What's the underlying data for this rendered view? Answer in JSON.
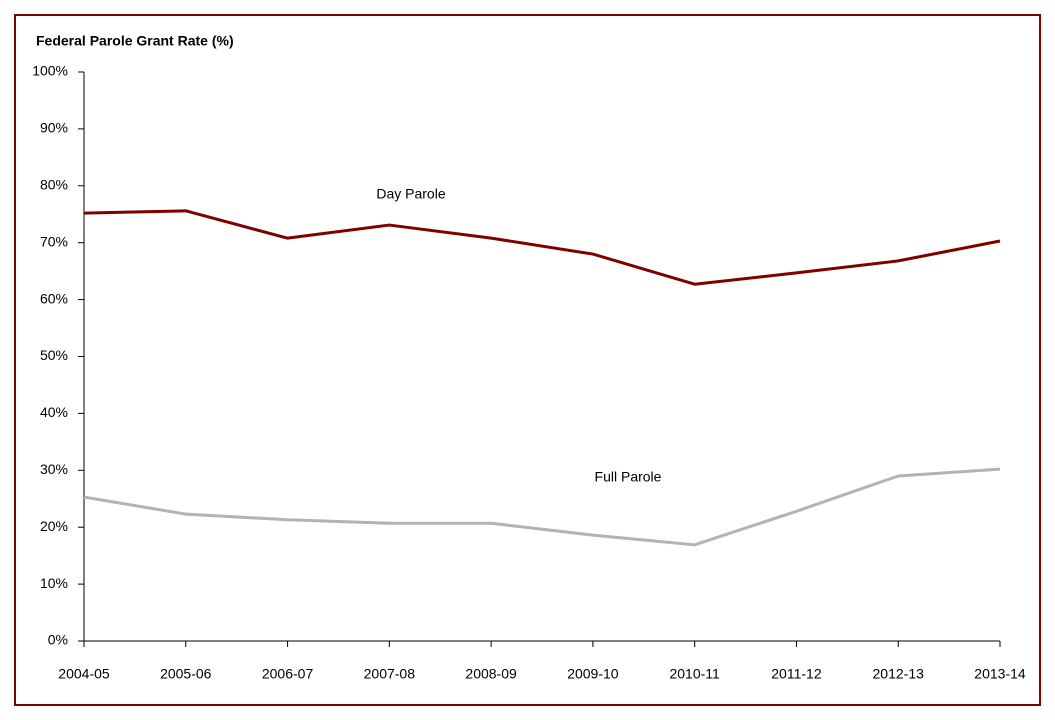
{
  "chart_data": {
    "type": "line",
    "title": "Federal Parole Grant Rate (%)",
    "categories": [
      "2004-05",
      "2005-06",
      "2006-07",
      "2007-08",
      "2008-09",
      "2009-10",
      "2010-11",
      "2011-12",
      "2012-13",
      "2013-14"
    ],
    "series": [
      {
        "name": "Day Parole",
        "color": "#800000",
        "values": [
          75.2,
          75.6,
          70.8,
          73.1,
          70.8,
          68.0,
          62.7,
          64.7,
          66.8,
          70.3
        ]
      },
      {
        "name": "Full Parole",
        "color": "#b3b3b3",
        "values": [
          25.3,
          22.3,
          21.3,
          20.7,
          20.7,
          18.6,
          16.9,
          22.8,
          29.0,
          30.2
        ]
      }
    ],
    "ylim": [
      0,
      100
    ],
    "yticks": [
      {
        "value": 0,
        "label": "0%"
      },
      {
        "value": 10,
        "label": "10%"
      },
      {
        "value": 20,
        "label": "20%"
      },
      {
        "value": 30,
        "label": "30%"
      },
      {
        "value": 40,
        "label": "40%"
      },
      {
        "value": 50,
        "label": "50%"
      },
      {
        "value": 60,
        "label": "60%"
      },
      {
        "value": 70,
        "label": "70%"
      },
      {
        "value": 80,
        "label": "80%"
      },
      {
        "value": 90,
        "label": "90%"
      },
      {
        "value": 100,
        "label": "100%"
      }
    ],
    "grid": false
  }
}
